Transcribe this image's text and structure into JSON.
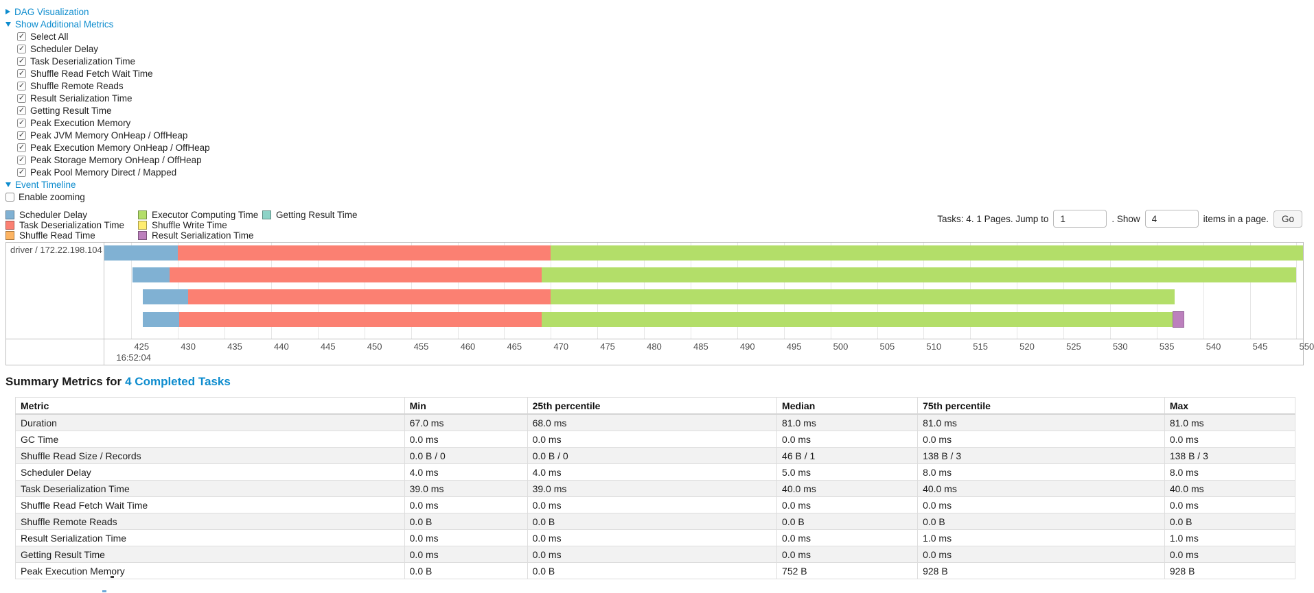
{
  "colors": {
    "link_blue": "#0d8cce",
    "scheduler_delay": "#80B1D3",
    "task_deserialization_time": "#FB8072",
    "shuffle_read_time": "#FDB462",
    "executor_computing_time": "#B3DE69",
    "shuffle_write_time": "#FFED6F",
    "result_serialization_time": "#BC80BD",
    "getting_result_time": "#8DD3C7"
  },
  "controls": {
    "dag_label": "DAG Visualization",
    "metrics_label": "Show Additional Metrics",
    "metric_items": [
      "Select All",
      "Scheduler Delay",
      "Task Deserialization Time",
      "Shuffle Read Fetch Wait Time",
      "Shuffle Remote Reads",
      "Result Serialization Time",
      "Getting Result Time",
      "Peak Execution Memory",
      "Peak JVM Memory OnHeap / OffHeap",
      "Peak Execution Memory OnHeap / OffHeap",
      "Peak Storage Memory OnHeap / OffHeap",
      "Peak Pool Memory Direct / Mapped"
    ],
    "timeline_label": "Event Timeline",
    "enable_zooming_label": "Enable zooming"
  },
  "legend": {
    "columns": [
      [
        {
          "label": "Scheduler Delay",
          "metric": "scheduler_delay"
        },
        {
          "label": "Task Deserialization Time",
          "metric": "task_deserialization_time"
        },
        {
          "label": "Shuffle Read Time",
          "metric": "shuffle_read_time"
        }
      ],
      [
        {
          "label": "Executor Computing Time",
          "metric": "executor_computing_time"
        },
        {
          "label": "Shuffle Write Time",
          "metric": "shuffle_write_time"
        },
        {
          "label": "Result Serialization Time",
          "metric": "result_serialization_time"
        }
      ],
      [
        {
          "label": "Getting Result Time",
          "metric": "getting_result_time"
        }
      ]
    ]
  },
  "pagination": {
    "tasks_info": "Tasks: 4. 1 Pages. Jump to",
    "jump_value": "1",
    "show_sep": ". Show",
    "show_value": "4",
    "items_suffix": "items in a page.",
    "go_label": "Go"
  },
  "chart_data": {
    "type": "timeline",
    "executor_label": "driver / 172.22.198.104",
    "time_unit": "ms (seconds-of-minute on axis)",
    "time_range": {
      "min": 422.1,
      "max": 550.7
    },
    "axis": {
      "ticks": [
        425,
        430,
        435,
        440,
        445,
        450,
        455,
        460,
        465,
        470,
        475,
        480,
        485,
        490,
        495,
        500,
        505,
        510,
        515,
        520,
        525,
        530,
        535,
        540,
        545,
        550
      ],
      "start_time_label": "16:52:04"
    },
    "row_tops": [
      4,
      36,
      68,
      101
    ],
    "tasks": [
      {
        "segments": [
          {
            "metric": "scheduler_delay",
            "start": 422.1,
            "end": 430.0
          },
          {
            "metric": "task_deserialization_time",
            "start": 430.0,
            "end": 470.0
          },
          {
            "metric": "executor_computing_time",
            "start": 470.0,
            "end": 550.7
          }
        ]
      },
      {
        "segments": [
          {
            "metric": "scheduler_delay",
            "start": 425.1,
            "end": 429.1
          },
          {
            "metric": "task_deserialization_time",
            "start": 429.1,
            "end": 469.0
          },
          {
            "metric": "executor_computing_time",
            "start": 469.0,
            "end": 550.0
          }
        ]
      },
      {
        "segments": [
          {
            "metric": "scheduler_delay",
            "start": 426.2,
            "end": 431.1
          },
          {
            "metric": "task_deserialization_time",
            "start": 431.1,
            "end": 470.0
          },
          {
            "metric": "executor_computing_time",
            "start": 470.0,
            "end": 536.9
          }
        ]
      },
      {
        "segments": [
          {
            "metric": "scheduler_delay",
            "start": 426.2,
            "end": 430.1
          },
          {
            "metric": "task_deserialization_time",
            "start": 430.1,
            "end": 469.0
          },
          {
            "metric": "executor_computing_time",
            "start": 469.0,
            "end": 536.8
          },
          {
            "metric": "result_serialization_time",
            "start": 536.8,
            "end": 537.9
          }
        ]
      }
    ]
  },
  "summary": {
    "title_prefix": "Summary Metrics for",
    "title_link": "4 Completed Tasks",
    "columns": [
      "Metric",
      "Min",
      "25th percentile",
      "Median",
      "75th percentile",
      "Max"
    ],
    "rows": [
      [
        "Duration",
        "67.0 ms",
        "68.0 ms",
        "81.0 ms",
        "81.0 ms",
        "81.0 ms"
      ],
      [
        "GC Time",
        "0.0 ms",
        "0.0 ms",
        "0.0 ms",
        "0.0 ms",
        "0.0 ms"
      ],
      [
        "Shuffle Read Size / Records",
        "0.0 B / 0",
        "0.0 B / 0",
        "46 B / 1",
        "138 B / 3",
        "138 B / 3"
      ],
      [
        "Scheduler Delay",
        "4.0 ms",
        "4.0 ms",
        "5.0 ms",
        "8.0 ms",
        "8.0 ms"
      ],
      [
        "Task Deserialization Time",
        "39.0 ms",
        "39.0 ms",
        "40.0 ms",
        "40.0 ms",
        "40.0 ms"
      ],
      [
        "Shuffle Read Fetch Wait Time",
        "0.0 ms",
        "0.0 ms",
        "0.0 ms",
        "0.0 ms",
        "0.0 ms"
      ],
      [
        "Shuffle Remote Reads",
        "0.0 B",
        "0.0 B",
        "0.0 B",
        "0.0 B",
        "0.0 B"
      ],
      [
        "Result Serialization Time",
        "0.0 ms",
        "0.0 ms",
        "0.0 ms",
        "1.0 ms",
        "1.0 ms"
      ],
      [
        "Getting Result Time",
        "0.0 ms",
        "0.0 ms",
        "0.0 ms",
        "0.0 ms",
        "0.0 ms"
      ],
      [
        "Peak Execution Memory",
        "0.0 B",
        "0.0 B",
        "752 B",
        "928 B",
        "928 B"
      ]
    ]
  }
}
